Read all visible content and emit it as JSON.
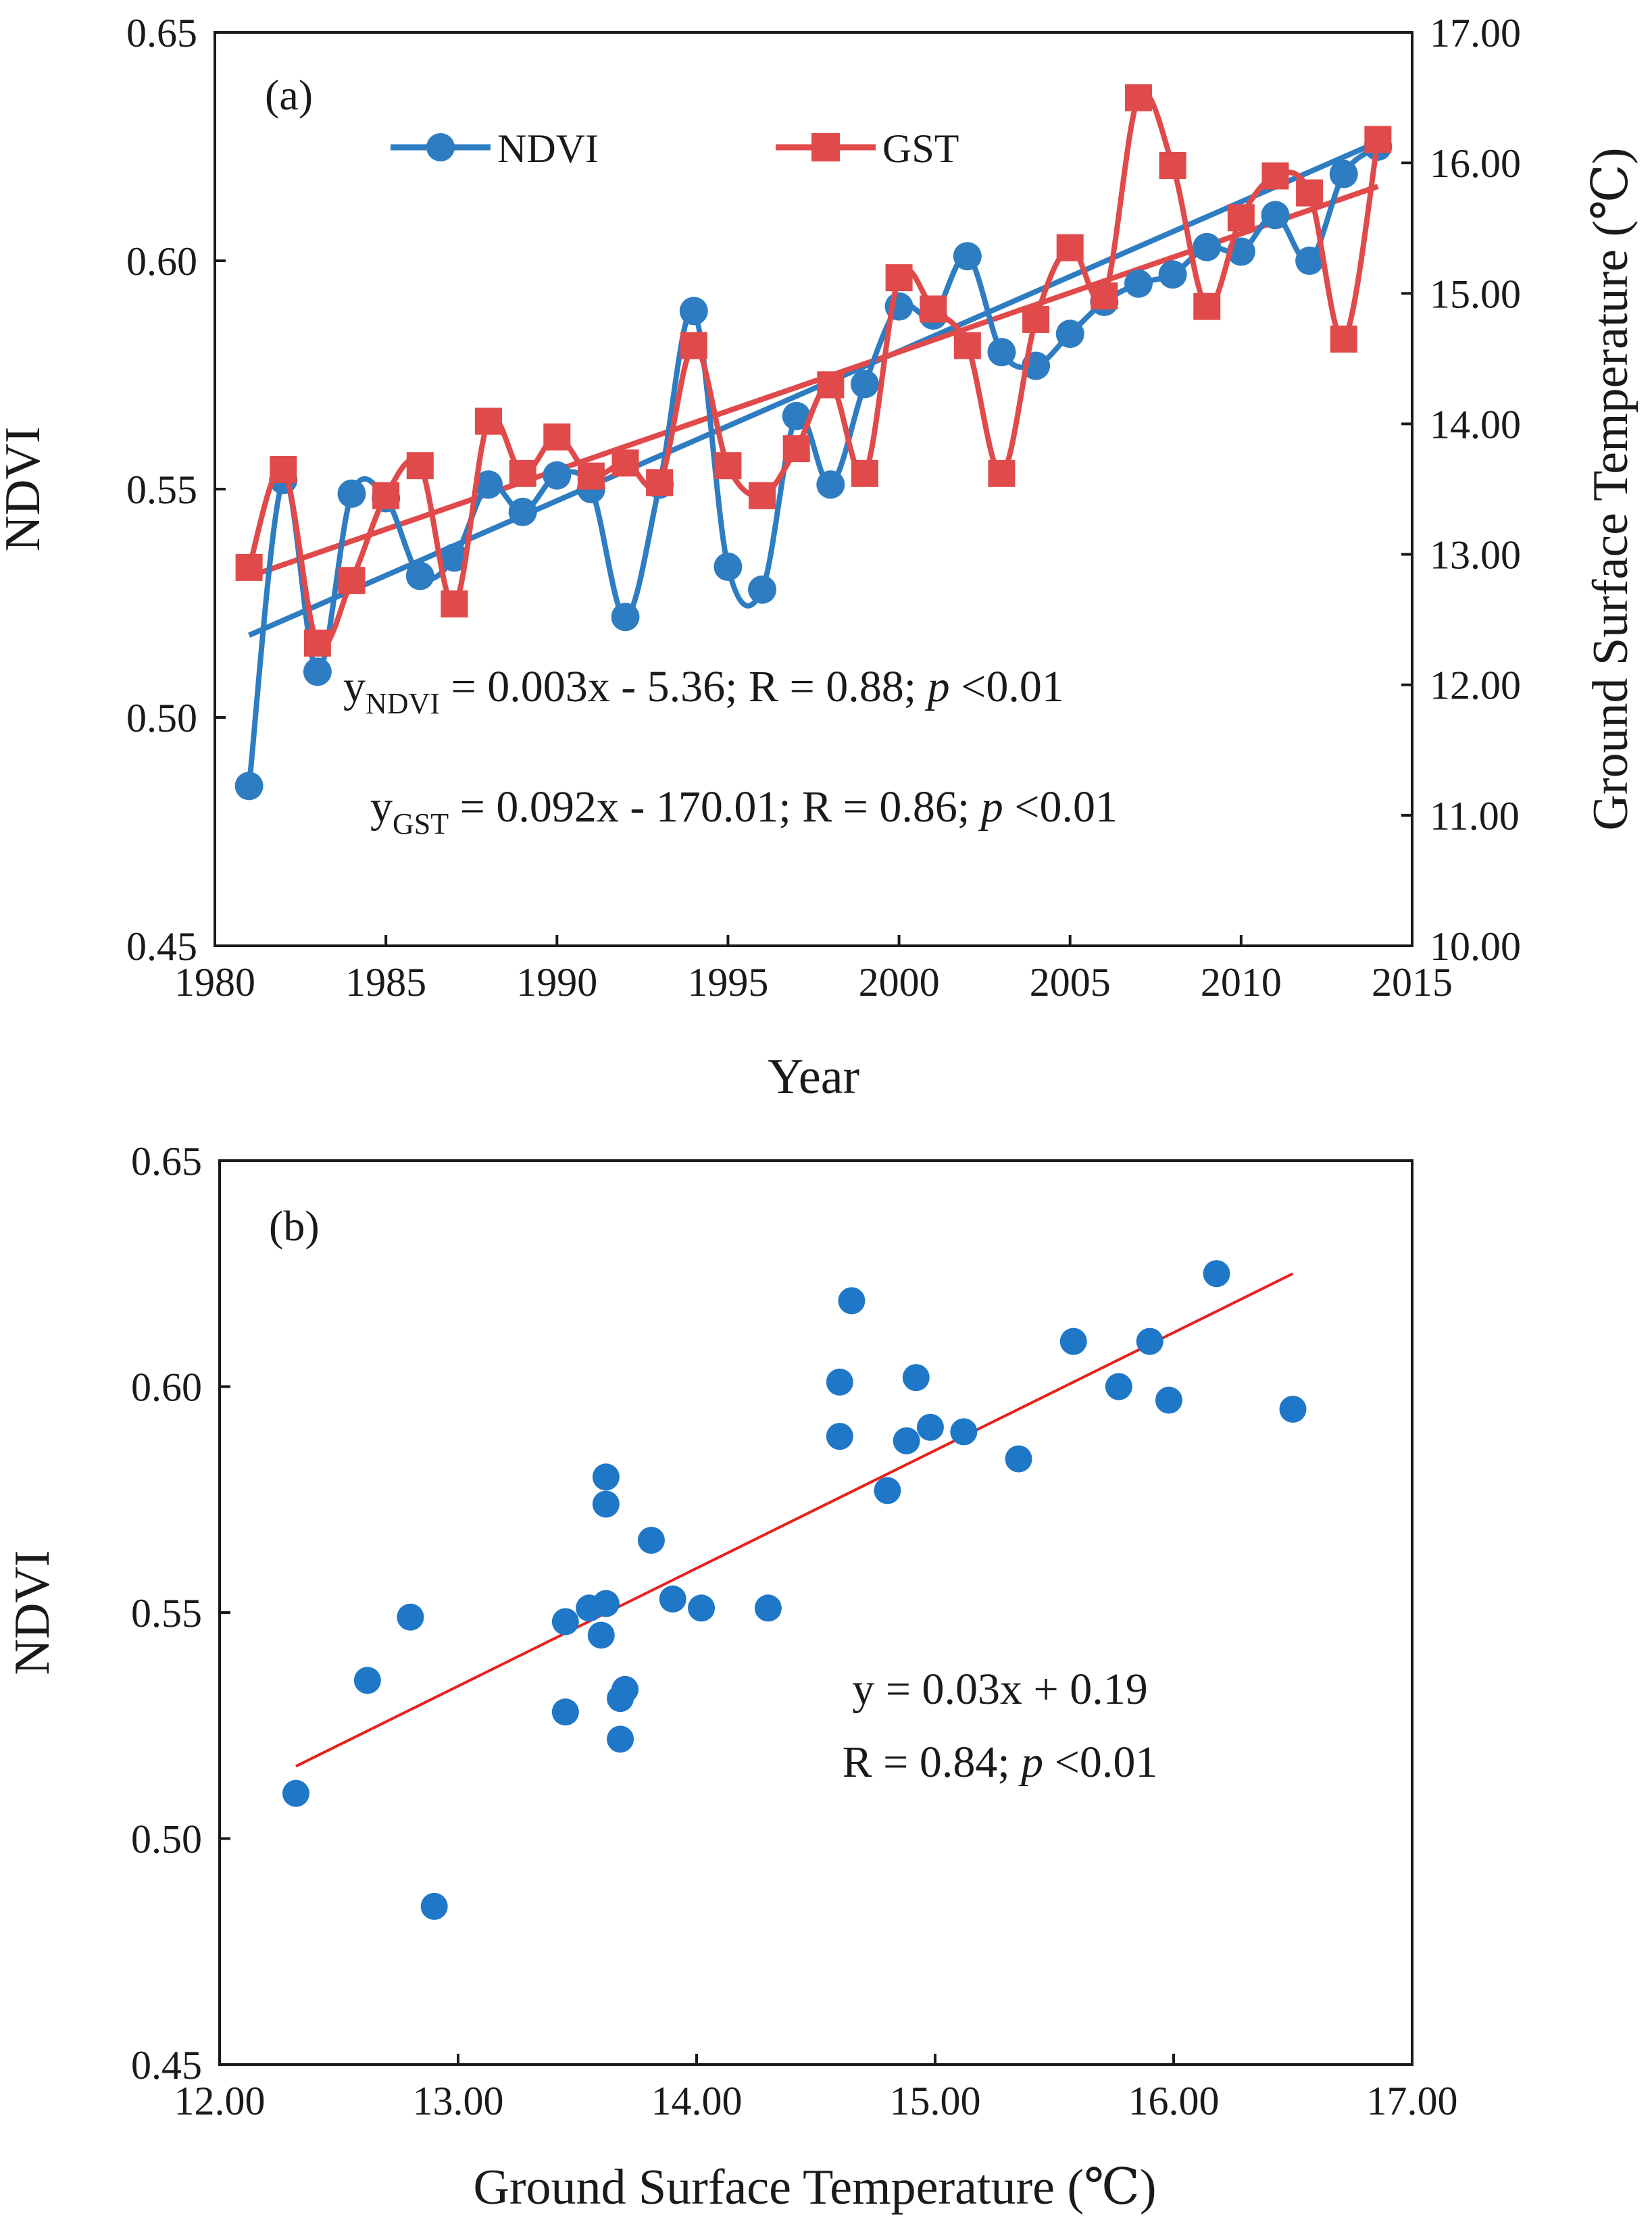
{
  "chart_data": [
    {
      "type": "line",
      "panel_label": "(a)",
      "xlabel": "Year",
      "ylabel": "NDVI",
      "y2label": "Ground Surface Temperature (℃)",
      "xlim": [
        1980,
        2015
      ],
      "ylim": [
        0.45,
        0.65
      ],
      "y2lim": [
        10.0,
        17.0
      ],
      "xticks": [
        "1980",
        "1985",
        "1990",
        "1995",
        "2000",
        "2005",
        "2010",
        "2015"
      ],
      "yticks": [
        "0.45",
        "0.50",
        "0.55",
        "0.60",
        "0.65"
      ],
      "y2ticks": [
        "10.00",
        "11.00",
        "12.00",
        "13.00",
        "14.00",
        "15.00",
        "16.00",
        "17.00"
      ],
      "years": [
        1981,
        1982,
        1983,
        1984,
        1985,
        1986,
        1987,
        1988,
        1989,
        1990,
        1991,
        1992,
        1993,
        1994,
        1995,
        1996,
        1997,
        1998,
        1999,
        2000,
        2001,
        2002,
        2003,
        2004,
        2005,
        2006,
        2007,
        2008,
        2009,
        2010,
        2011,
        2012,
        2013,
        2014
      ],
      "series": [
        {
          "name": "NDVI",
          "axis": "left",
          "color": "#2e7dc2",
          "marker": "circle",
          "values": [
            0.485,
            0.552,
            0.51,
            0.549,
            0.548,
            0.531,
            0.535,
            0.551,
            0.545,
            0.553,
            0.55,
            0.522,
            0.551,
            0.589,
            0.533,
            0.528,
            0.566,
            0.551,
            0.573,
            0.59,
            0.588,
            0.601,
            0.58,
            0.577,
            0.584,
            0.591,
            0.595,
            0.597,
            0.603,
            0.602,
            0.61,
            0.6,
            0.619,
            0.625
          ],
          "trend": {
            "x": [
              1981,
              2014
            ],
            "y": [
              0.518,
              0.626
            ]
          }
        },
        {
          "name": "GST",
          "axis": "right",
          "color": "#e04a4a",
          "marker": "square",
          "values": [
            12.9,
            13.65,
            12.32,
            12.8,
            13.45,
            13.68,
            12.62,
            14.02,
            13.62,
            13.9,
            13.6,
            13.7,
            13.55,
            14.6,
            13.68,
            13.45,
            13.81,
            14.3,
            13.62,
            15.12,
            14.88,
            14.6,
            13.62,
            14.8,
            15.35,
            14.98,
            16.5,
            15.98,
            14.9,
            15.58,
            15.9,
            15.77,
            14.65,
            16.18
          ],
          "trend": {
            "x": [
              1981,
              2014
            ],
            "y": [
              12.83,
              15.82
            ]
          }
        }
      ],
      "equations": [
        {
          "lhs": "y",
          "sub": "NDVI",
          "body": " = 0.003x - 5.36; R = 0.88; ",
          "p": "p",
          "tail": " <0.01"
        },
        {
          "lhs": "y",
          "sub": "GST",
          "body": " = 0.092x - 170.01; R = 0.86; ",
          "p": "p",
          "tail": " <0.01"
        }
      ]
    },
    {
      "type": "scatter",
      "panel_label": "(b)",
      "xlabel": "Ground Surface Temperature (℃)",
      "ylabel": "NDVI",
      "xlim": [
        12.0,
        17.0
      ],
      "ylim": [
        0.45,
        0.65
      ],
      "xticks": [
        "12.00",
        "13.00",
        "14.00",
        "15.00",
        "16.00",
        "17.00"
      ],
      "yticks": [
        "0.45",
        "0.50",
        "0.55",
        "0.60",
        "0.65"
      ],
      "color": "#1f77c8",
      "trend_color": "#e8211c",
      "points": [
        [
          12.32,
          0.51
        ],
        [
          12.62,
          0.535
        ],
        [
          12.8,
          0.549
        ],
        [
          12.9,
          0.485
        ],
        [
          13.45,
          0.548
        ],
        [
          13.45,
          0.528
        ],
        [
          13.55,
          0.551
        ],
        [
          13.6,
          0.545
        ],
        [
          13.62,
          0.552
        ],
        [
          13.62,
          0.58
        ],
        [
          13.62,
          0.574
        ],
        [
          13.68,
          0.531
        ],
        [
          13.7,
          0.533
        ],
        [
          13.68,
          0.522
        ],
        [
          13.81,
          0.566
        ],
        [
          13.9,
          0.553
        ],
        [
          14.02,
          0.551
        ],
        [
          14.3,
          0.551
        ],
        [
          14.6,
          0.589
        ],
        [
          14.6,
          0.601
        ],
        [
          14.65,
          0.619
        ],
        [
          14.8,
          0.577
        ],
        [
          14.88,
          0.588
        ],
        [
          14.92,
          0.602
        ],
        [
          14.98,
          0.591
        ],
        [
          15.12,
          0.59
        ],
        [
          15.35,
          0.584
        ],
        [
          15.58,
          0.61
        ],
        [
          15.77,
          0.6
        ],
        [
          15.9,
          0.61
        ],
        [
          15.98,
          0.597
        ],
        [
          16.18,
          0.625
        ],
        [
          16.5,
          0.595
        ]
      ],
      "trend": {
        "x": [
          12.32,
          16.5
        ],
        "y": [
          0.516,
          0.625
        ]
      },
      "equation_lines": [
        {
          "text": "y = 0.03x + 0.19"
        },
        {
          "body": "R = 0.84; ",
          "p": "p",
          "tail": " <0.01"
        }
      ]
    }
  ]
}
